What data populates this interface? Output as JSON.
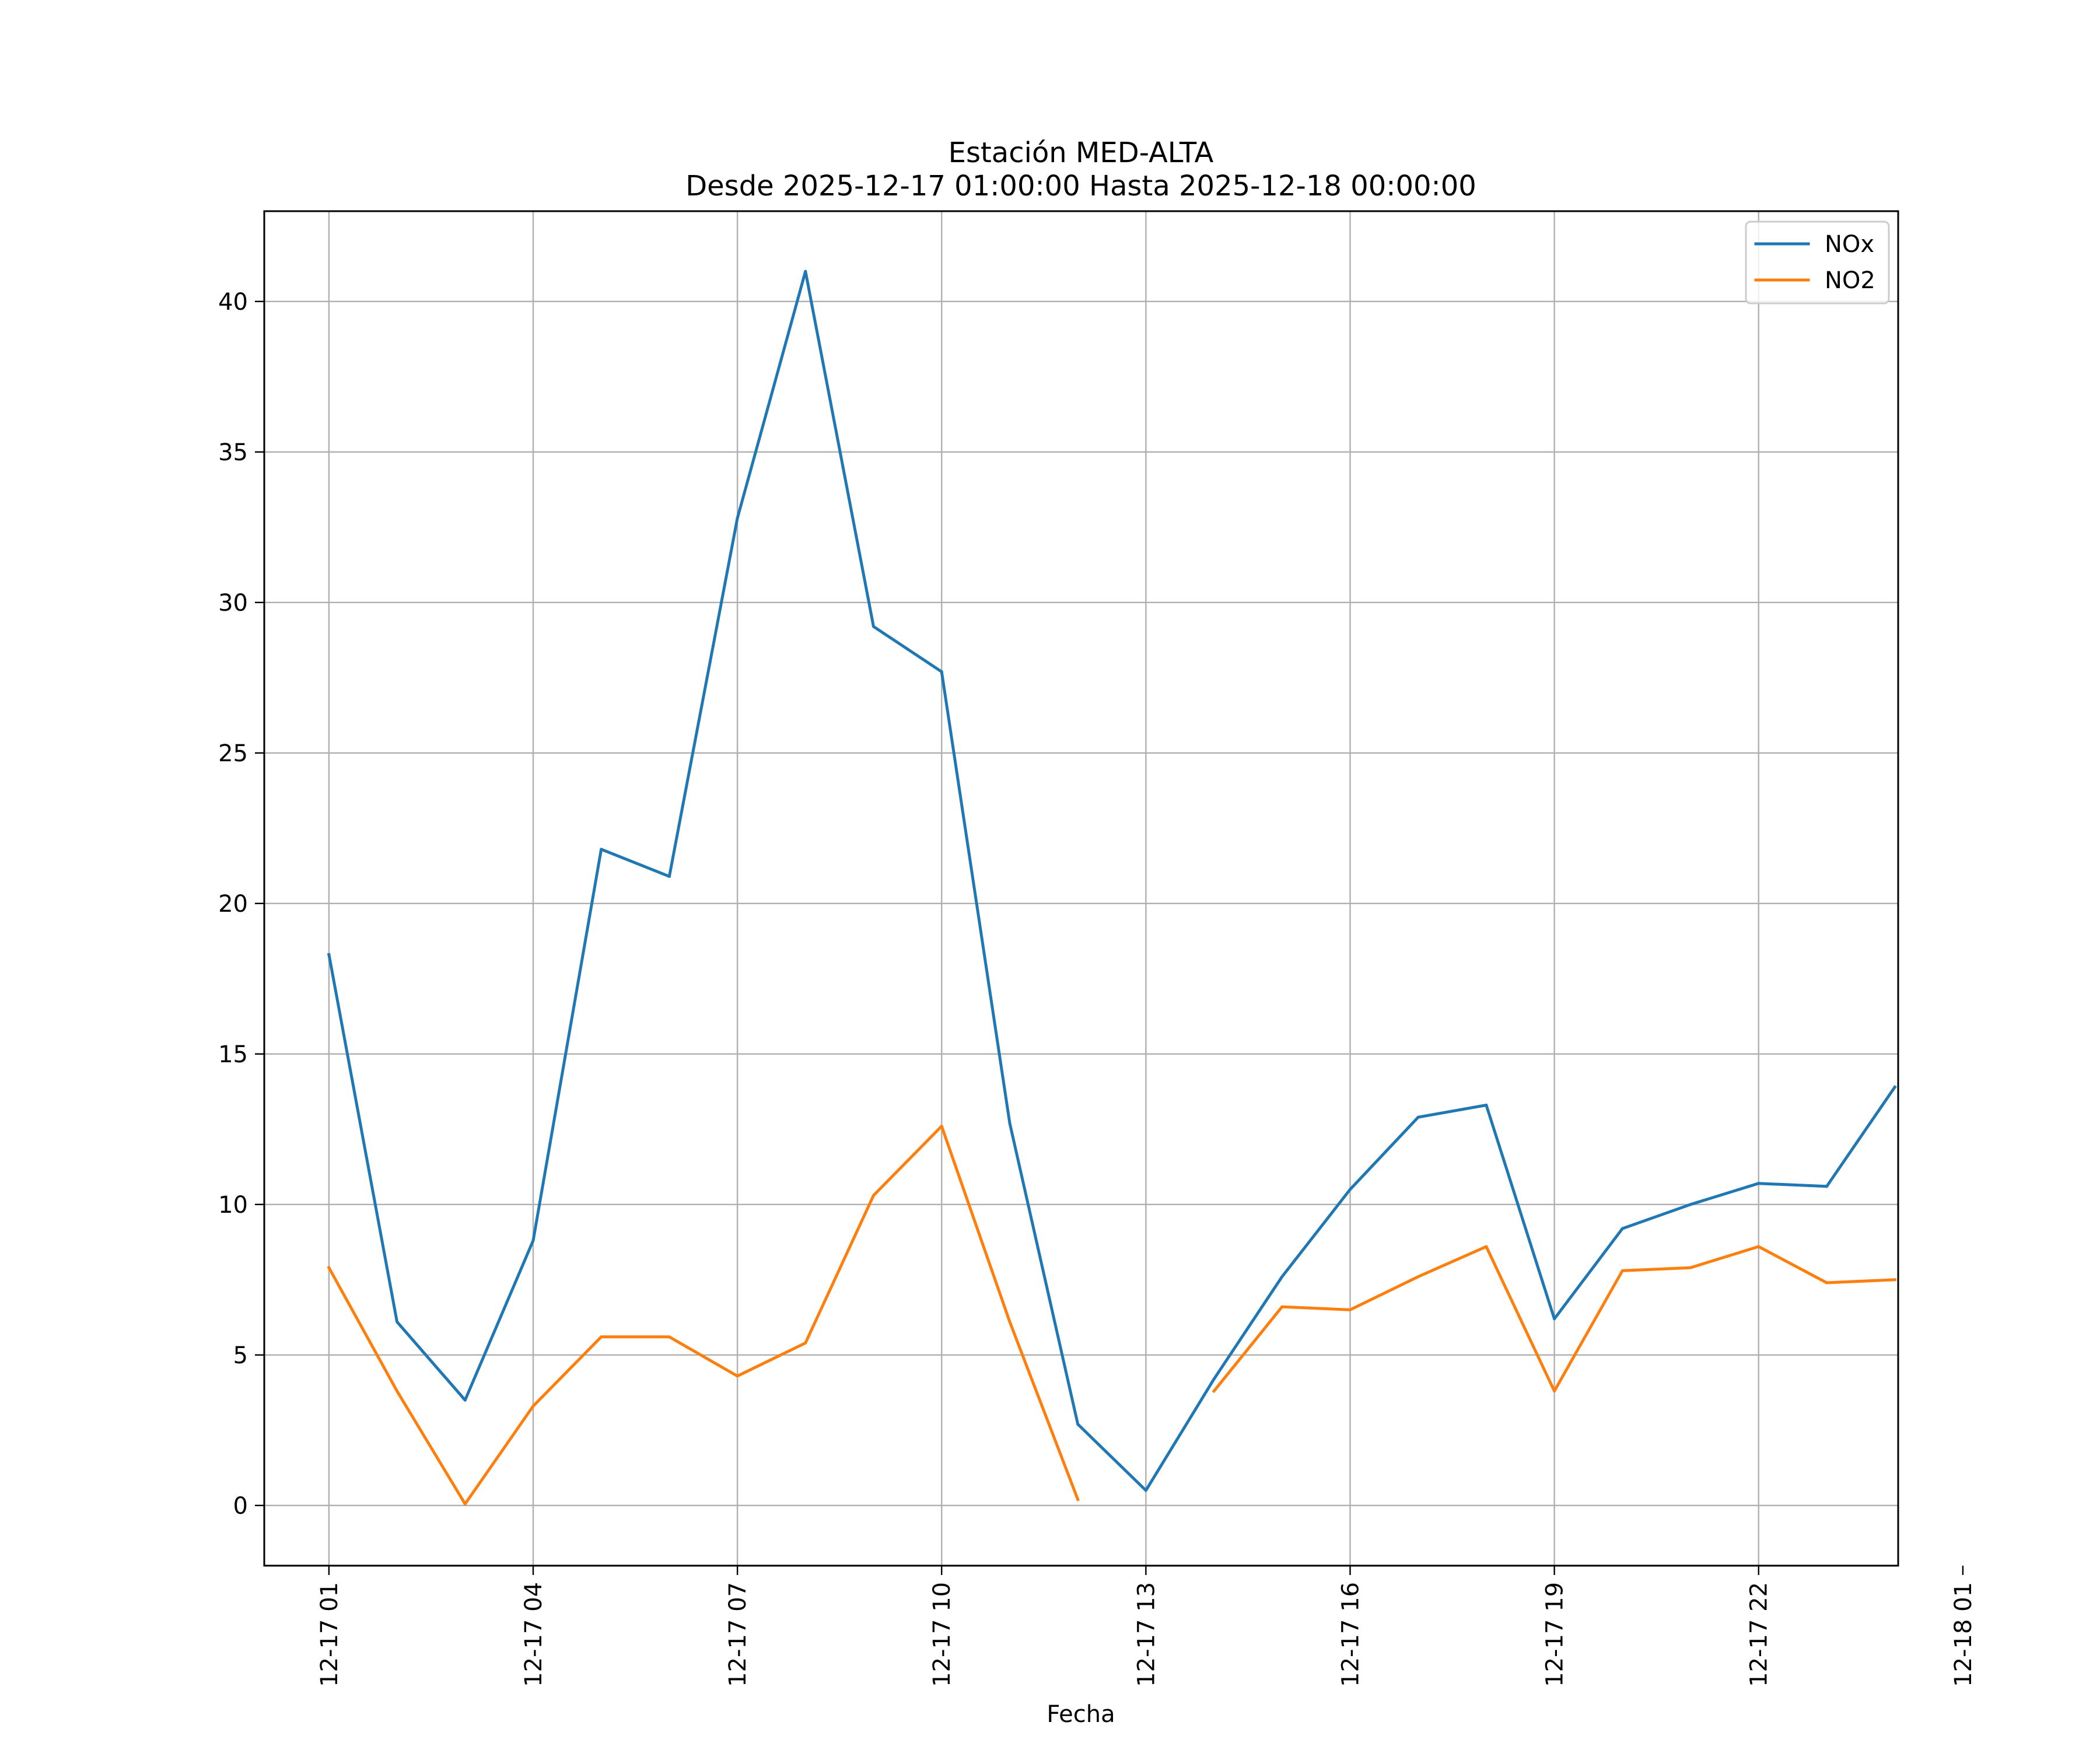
{
  "chart_data": {
    "type": "line",
    "title": "Estación MED-ALTA",
    "subtitle": "Desde 2025-12-17 01:00:00 Hasta 2025-12-18 00:00:00",
    "xlabel": "Fecha",
    "ylabel": "",
    "grid": true,
    "legend_position": "top-right",
    "ylim": [
      -2,
      43
    ],
    "xlim_hours": [
      0.05,
      24.05
    ],
    "x_ticks": [
      {
        "hour": 1,
        "label": "12-17 01"
      },
      {
        "hour": 4,
        "label": "12-17 04"
      },
      {
        "hour": 7,
        "label": "12-17 07"
      },
      {
        "hour": 10,
        "label": "12-17 10"
      },
      {
        "hour": 13,
        "label": "12-17 13"
      },
      {
        "hour": 16,
        "label": "12-17 16"
      },
      {
        "hour": 19,
        "label": "12-17 19"
      },
      {
        "hour": 22,
        "label": "12-17 22"
      },
      {
        "hour": 25,
        "label": "12-18 01"
      }
    ],
    "y_ticks": [
      {
        "value": 0,
        "label": "0"
      },
      {
        "value": 5,
        "label": "5"
      },
      {
        "value": 10,
        "label": "10"
      },
      {
        "value": 15,
        "label": "15"
      },
      {
        "value": 20,
        "label": "20"
      },
      {
        "value": 25,
        "label": "25"
      },
      {
        "value": 30,
        "label": "30"
      },
      {
        "value": 35,
        "label": "35"
      },
      {
        "value": 40,
        "label": "40"
      }
    ],
    "x_hours": [
      1,
      2,
      3,
      4,
      5,
      6,
      7,
      8,
      9,
      10,
      11,
      12,
      13,
      14,
      15,
      16,
      17,
      18,
      19,
      20,
      21,
      22,
      23,
      24
    ],
    "series": [
      {
        "name": "NOx",
        "color": "#1f77b4",
        "values": [
          18.3,
          6.1,
          3.5,
          8.8,
          21.8,
          20.9,
          32.8,
          41.0,
          29.2,
          27.7,
          12.7,
          2.7,
          0.5,
          4.2,
          7.6,
          10.5,
          12.9,
          13.3,
          6.2,
          9.2,
          10.0,
          10.7,
          10.6,
          13.9
        ]
      },
      {
        "name": "NO2",
        "color": "#ff7f0e",
        "values": [
          7.9,
          3.8,
          0.05,
          3.3,
          5.6,
          5.6,
          4.3,
          5.4,
          10.3,
          12.6,
          6.1,
          0.2,
          null,
          3.8,
          6.6,
          6.5,
          7.6,
          8.6,
          3.8,
          7.8,
          7.9,
          8.6,
          7.4,
          7.5
        ]
      }
    ]
  }
}
